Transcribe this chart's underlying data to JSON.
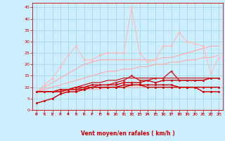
{
  "xlabel": "Vent moyen/en rafales ( km/h )",
  "xlim": [
    -0.5,
    23.5
  ],
  "ylim": [
    0,
    47
  ],
  "yticks": [
    0,
    5,
    10,
    15,
    20,
    25,
    30,
    35,
    40,
    45
  ],
  "xticks": [
    0,
    1,
    2,
    3,
    4,
    5,
    6,
    7,
    8,
    9,
    10,
    11,
    12,
    13,
    14,
    15,
    16,
    17,
    18,
    19,
    20,
    21,
    22,
    23
  ],
  "bg_color": "#cceeff",
  "grid_color": "#99cccc",
  "lines": [
    {
      "y": [
        8,
        8,
        8,
        8,
        8,
        8,
        9,
        9,
        9,
        10,
        10,
        10,
        10,
        10,
        10,
        10,
        10,
        10,
        10,
        10,
        10,
        10,
        10,
        10
      ],
      "color": "#ffaaaa",
      "lw": 0.8,
      "marker": null
    },
    {
      "y": [
        8,
        9,
        10,
        11,
        12,
        13,
        14,
        15,
        16,
        17,
        17,
        18,
        18,
        19,
        19,
        20,
        20,
        21,
        21,
        22,
        22,
        23,
        23,
        24
      ],
      "color": "#ffaaaa",
      "lw": 0.8,
      "marker": null
    },
    {
      "y": [
        8,
        10,
        12,
        14,
        16,
        18,
        20,
        21,
        22,
        22,
        22,
        22,
        22,
        22,
        22,
        22,
        23,
        23,
        24,
        25,
        26,
        27,
        28,
        28
      ],
      "color": "#ffaaaa",
      "lw": 0.8,
      "marker": null
    },
    {
      "y": [
        8,
        11,
        14,
        19,
        24,
        28,
        22,
        22,
        24,
        25,
        25,
        25,
        45,
        25,
        21,
        22,
        28,
        28,
        34,
        30,
        29,
        28,
        16,
        23
      ],
      "color": "#ffbbbb",
      "lw": 0.8,
      "marker": "o",
      "ms": 2.0
    },
    {
      "y": [
        3,
        4,
        5,
        7,
        8,
        8,
        9,
        10,
        10,
        10,
        10,
        10,
        11,
        11,
        10,
        10,
        10,
        10,
        10,
        10,
        10,
        8,
        8,
        8
      ],
      "color": "#cc0000",
      "lw": 1.0,
      "marker": "o",
      "ms": 1.8
    },
    {
      "y": [
        8,
        8,
        8,
        8,
        9,
        9,
        9,
        10,
        10,
        10,
        10,
        11,
        11,
        11,
        11,
        11,
        11,
        11,
        10,
        10,
        10,
        10,
        10,
        10
      ],
      "color": "#cc0000",
      "lw": 1.0,
      "marker": "o",
      "ms": 1.8
    },
    {
      "y": [
        8,
        8,
        8,
        9,
        9,
        10,
        10,
        11,
        11,
        11,
        11,
        12,
        12,
        12,
        13,
        12,
        13,
        13,
        13,
        13,
        13,
        13,
        14,
        14
      ],
      "color": "#cc0000",
      "lw": 1.0,
      "marker": "o",
      "ms": 1.8
    },
    {
      "y": [
        8,
        8,
        8,
        8,
        9,
        9,
        10,
        10,
        11,
        11,
        12,
        13,
        15,
        13,
        13,
        14,
        14,
        17,
        13,
        13,
        13,
        13,
        14,
        14
      ],
      "color": "#cc2222",
      "lw": 1.0,
      "marker": "o",
      "ms": 1.8
    },
    {
      "y": [
        8,
        8,
        8,
        8,
        9,
        10,
        11,
        12,
        12,
        13,
        13,
        14,
        14,
        14,
        14,
        14,
        14,
        14,
        14,
        14,
        14,
        14,
        14,
        14
      ],
      "color": "#cc0000",
      "lw": 0.8,
      "marker": null
    }
  ],
  "arrow_color": "#cc0000"
}
